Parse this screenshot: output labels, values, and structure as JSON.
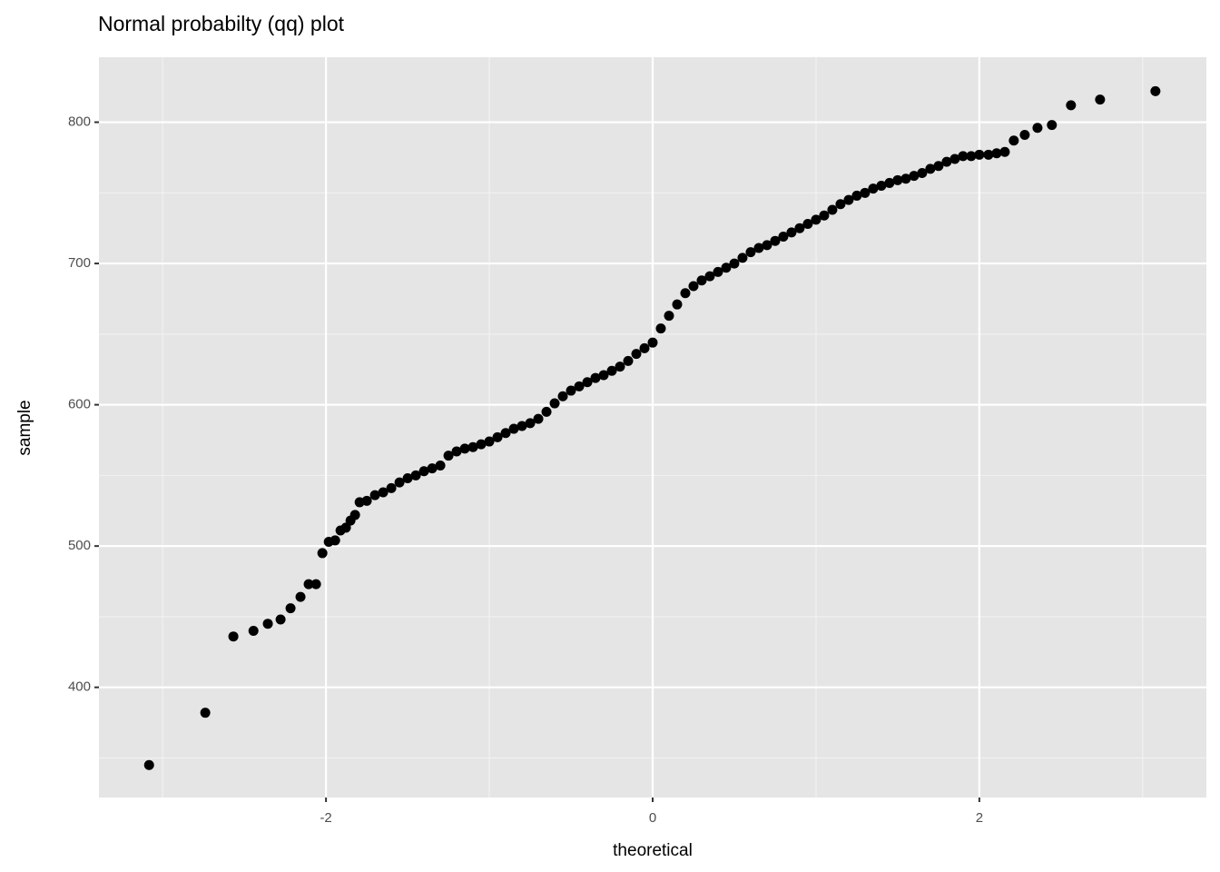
{
  "chart_data": {
    "type": "scatter",
    "title": "Normal probabilty (qq) plot",
    "x_label": "theoretical",
    "y_label": "sample",
    "color": "#000000",
    "grid": true,
    "xlim": [
      -3.39,
      3.39
    ],
    "ylim": [
      322,
      846
    ],
    "xticks": [
      -2,
      0,
      2
    ],
    "yticks": [
      400,
      500,
      600,
      700,
      800
    ],
    "xminor": [
      -3,
      -1,
      1,
      3
    ],
    "yminor": [
      350,
      450,
      550,
      650,
      750
    ],
    "x": [
      -3.083,
      -2.739,
      -2.567,
      -2.444,
      -2.356,
      -2.278,
      -2.217,
      -2.156,
      -2.106,
      -2.061,
      -2.022,
      -1.983,
      -1.944,
      -1.911,
      -1.878,
      -1.85,
      -1.822,
      -1.794,
      -1.75,
      -1.7,
      -1.65,
      -1.6,
      -1.55,
      -1.5,
      -1.45,
      -1.4,
      -1.35,
      -1.3,
      -1.25,
      -1.2,
      -1.15,
      -1.1,
      -1.05,
      -1.0,
      -0.95,
      -0.9,
      -0.85,
      -0.8,
      -0.75,
      -0.7,
      -0.65,
      -0.6,
      -0.55,
      -0.5,
      -0.45,
      -0.4,
      -0.35,
      -0.3,
      -0.25,
      -0.2,
      -0.15,
      -0.1,
      -0.05,
      0,
      0.05,
      0.1,
      0.15,
      0.2,
      0.25,
      0.3,
      0.35,
      0.4,
      0.45,
      0.5,
      0.55,
      0.6,
      0.65,
      0.7,
      0.75,
      0.8,
      0.85,
      0.9,
      0.95,
      1.0,
      1.05,
      1.1,
      1.15,
      1.2,
      1.25,
      1.3,
      1.35,
      1.4,
      1.45,
      1.5,
      1.55,
      1.6,
      1.65,
      1.7,
      1.75,
      1.8,
      1.85,
      1.9,
      1.95,
      2.0,
      2.056,
      2.106,
      2.156,
      2.211,
      2.278,
      2.356,
      2.444,
      2.561,
      2.739,
      3.078
    ],
    "values": [
      345,
      382,
      436,
      440,
      445,
      448,
      456,
      464,
      473,
      473,
      495,
      503,
      504,
      511,
      513,
      518,
      522,
      531,
      532,
      536,
      538,
      541,
      545,
      548,
      550,
      553,
      555,
      557,
      564,
      567,
      569,
      570,
      572,
      574,
      577,
      580,
      583,
      585,
      587,
      590,
      595,
      601,
      606,
      610,
      613,
      616,
      619,
      621,
      624,
      627,
      631,
      636,
      640,
      644,
      654,
      663,
      671,
      679,
      684,
      688,
      691,
      694,
      697,
      700,
      704,
      708,
      711,
      713,
      716,
      719,
      722,
      725,
      728,
      731,
      734,
      738,
      742,
      745,
      748,
      750,
      753,
      755,
      757,
      759,
      760,
      762,
      764,
      767,
      769,
      772,
      774,
      776,
      776,
      777,
      777,
      778,
      779,
      787,
      791,
      796,
      798,
      812,
      816,
      822
    ]
  }
}
